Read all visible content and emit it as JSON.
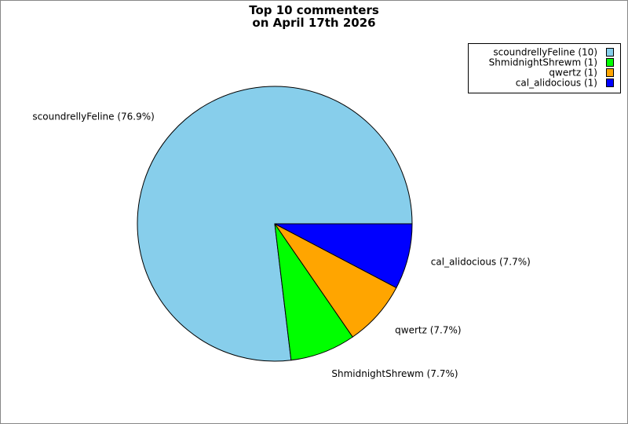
{
  "chart_data": {
    "type": "pie",
    "title": "Top 10 commenters\non April 17th 2026",
    "categories": [
      "scoundrellyFeline (10)",
      "ShmidnightShrewm (1)",
      "qwertz (1)",
      "cal_alidocious (1)"
    ],
    "values": [
      76.9,
      7.7,
      7.7,
      7.7
    ],
    "value_labels": [
      "scoundrellyFeline (76.9%)",
      "ShmidnightShrewm (7.7%)",
      "qwertz (7.7%)",
      "cal_alidocious (7.7%)"
    ],
    "colors": [
      "#87ceeb",
      "#00ff00",
      "#ffa500",
      "#0000ff"
    ],
    "legend": "upper right"
  }
}
